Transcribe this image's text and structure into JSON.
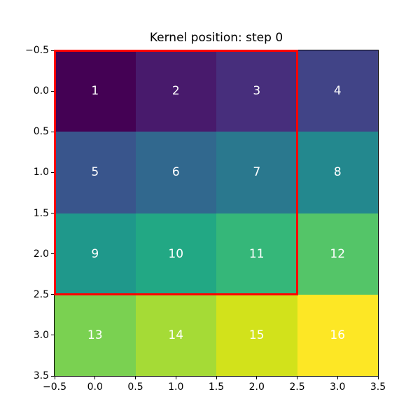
{
  "title": "Kernel position: step 0",
  "chart_data": {
    "type": "heatmap",
    "title": "Kernel position: step 0",
    "colormap": "viridis",
    "grid_values": [
      [
        1,
        2,
        3,
        4
      ],
      [
        5,
        6,
        7,
        8
      ],
      [
        9,
        10,
        11,
        12
      ],
      [
        13,
        14,
        15,
        16
      ]
    ],
    "cell_colors": [
      "#440154",
      "#481a6c",
      "#472e7c",
      "#414487",
      "#39558c",
      "#31688e",
      "#2a788e",
      "#23888e",
      "#1f988b",
      "#22a884",
      "#35b779",
      "#54c568",
      "#7ad151",
      "#a5db36",
      "#d2e21b",
      "#fde725"
    ],
    "cell_text_color": "#ffffff",
    "x_ticks": [
      "−0.5",
      "0.0",
      "0.5",
      "1.0",
      "1.5",
      "2.0",
      "2.5",
      "3.0",
      "3.5"
    ],
    "y_ticks": [
      "−0.5",
      "0.0",
      "0.5",
      "1.0",
      "1.5",
      "2.0",
      "2.5",
      "3.0",
      "3.5"
    ],
    "xlim": [
      -0.5,
      3.5
    ],
    "ylim": [
      3.5,
      -0.5
    ],
    "grid_on": false,
    "kernel_rect": {
      "x": -0.5,
      "y": -0.5,
      "width": 3,
      "height": 3,
      "edge_color": "#ff0000",
      "linewidth": 3
    }
  }
}
